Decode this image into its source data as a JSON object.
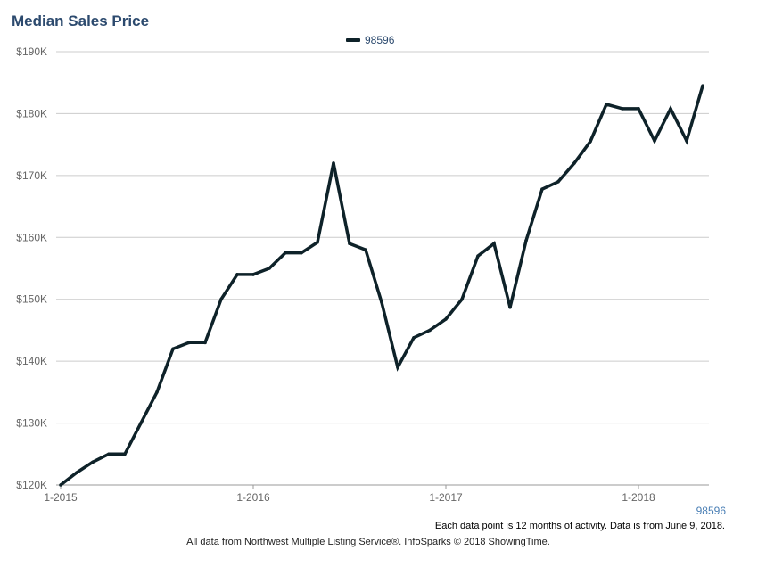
{
  "header": {
    "title": "Median Sales Price"
  },
  "footer": {
    "note": "Each data point is 12 months of activity. Data is from June 9, 2018.",
    "credit": "All data from Northwest Multiple Listing Service®. InfoSparks © 2018 ShowingTime.",
    "corner_label": "98596"
  },
  "colors": {
    "line": "#0e2229",
    "grid": "#cccccc",
    "title": "#2c4a6e",
    "corner_label": "#4a7fb5"
  },
  "chart_data": {
    "type": "line",
    "title": "Median Sales Price",
    "xlabel": "",
    "ylabel": "",
    "legend_position": "top-center",
    "grid": true,
    "ylim": [
      120000,
      190000
    ],
    "yticks": [
      {
        "value": 190000,
        "label": "$190K"
      },
      {
        "value": 180000,
        "label": "$180K"
      },
      {
        "value": 170000,
        "label": "$170K"
      },
      {
        "value": 160000,
        "label": "$160K"
      },
      {
        "value": 150000,
        "label": "$150K"
      },
      {
        "value": 140000,
        "label": "$140K"
      },
      {
        "value": 130000,
        "label": "$130K"
      },
      {
        "value": 120000,
        "label": "$120K"
      }
    ],
    "xticks": [
      "1-2015",
      "1-2016",
      "1-2017",
      "1-2018"
    ],
    "x": [
      "1-2015",
      "2-2015",
      "3-2015",
      "4-2015",
      "5-2015",
      "6-2015",
      "7-2015",
      "8-2015",
      "9-2015",
      "10-2015",
      "11-2015",
      "12-2015",
      "1-2016",
      "2-2016",
      "3-2016",
      "4-2016",
      "5-2016",
      "6-2016",
      "7-2016",
      "8-2016",
      "9-2016",
      "10-2016",
      "11-2016",
      "12-2016",
      "1-2017",
      "2-2017",
      "3-2017",
      "4-2017",
      "5-2017",
      "6-2017",
      "7-2017",
      "8-2017",
      "9-2017",
      "10-2017",
      "11-2017",
      "12-2017",
      "1-2018",
      "2-2018",
      "3-2018",
      "4-2018",
      "5-2018"
    ],
    "series": [
      {
        "name": "98596",
        "values": [
          120000,
          122000,
          123700,
          125000,
          125000,
          130000,
          135000,
          142000,
          143000,
          143000,
          150000,
          154000,
          154000,
          155000,
          157500,
          157500,
          159200,
          172000,
          159000,
          158000,
          149500,
          139000,
          143800,
          145000,
          146800,
          150000,
          157000,
          159000,
          148700,
          159500,
          167800,
          169000,
          172000,
          175500,
          181500,
          180800,
          180800,
          175600,
          180800,
          175600,
          184500
        ]
      }
    ]
  }
}
